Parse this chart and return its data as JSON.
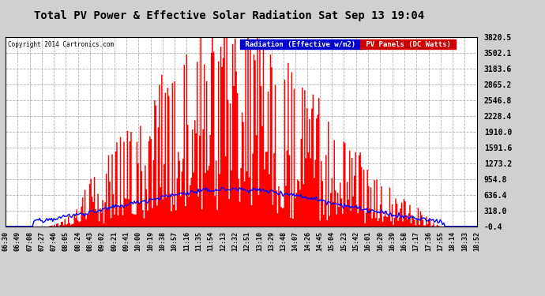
{
  "title": "Total PV Power & Effective Solar Radiation Sat Sep 13 19:04",
  "copyright": "Copyright 2014 Cartronics.com",
  "legend_blue": "Radiation (Effective w/m2)",
  "legend_red": "PV Panels (DC Watts)",
  "yticks": [
    3820.5,
    3502.1,
    3183.6,
    2865.2,
    2546.8,
    2228.4,
    1910.0,
    1591.6,
    1273.2,
    954.8,
    636.4,
    318.0,
    -0.4
  ],
  "ylim": [
    -0.4,
    3820.5
  ],
  "plot_bg_color": "#ffffff",
  "grid_color": "#aaaaaa",
  "red_color": "#FF0000",
  "blue_color": "#0000FF",
  "fig_bg": "#d0d0d0",
  "xtick_labels": [
    "06:30",
    "06:49",
    "07:08",
    "07:27",
    "07:46",
    "08:05",
    "08:24",
    "08:43",
    "09:02",
    "09:21",
    "09:41",
    "10:00",
    "10:19",
    "10:38",
    "10:57",
    "11:16",
    "11:35",
    "11:54",
    "12:13",
    "12:32",
    "12:51",
    "13:10",
    "13:29",
    "13:48",
    "14:07",
    "14:26",
    "14:45",
    "15:04",
    "15:23",
    "15:42",
    "16:01",
    "16:20",
    "16:39",
    "16:58",
    "17:17",
    "17:36",
    "17:55",
    "18:14",
    "18:33",
    "18:52"
  ],
  "pv_max": 3820.5,
  "radiation_scale": 318.0,
  "radiation_max_val": 1050.0,
  "n_points": 400
}
